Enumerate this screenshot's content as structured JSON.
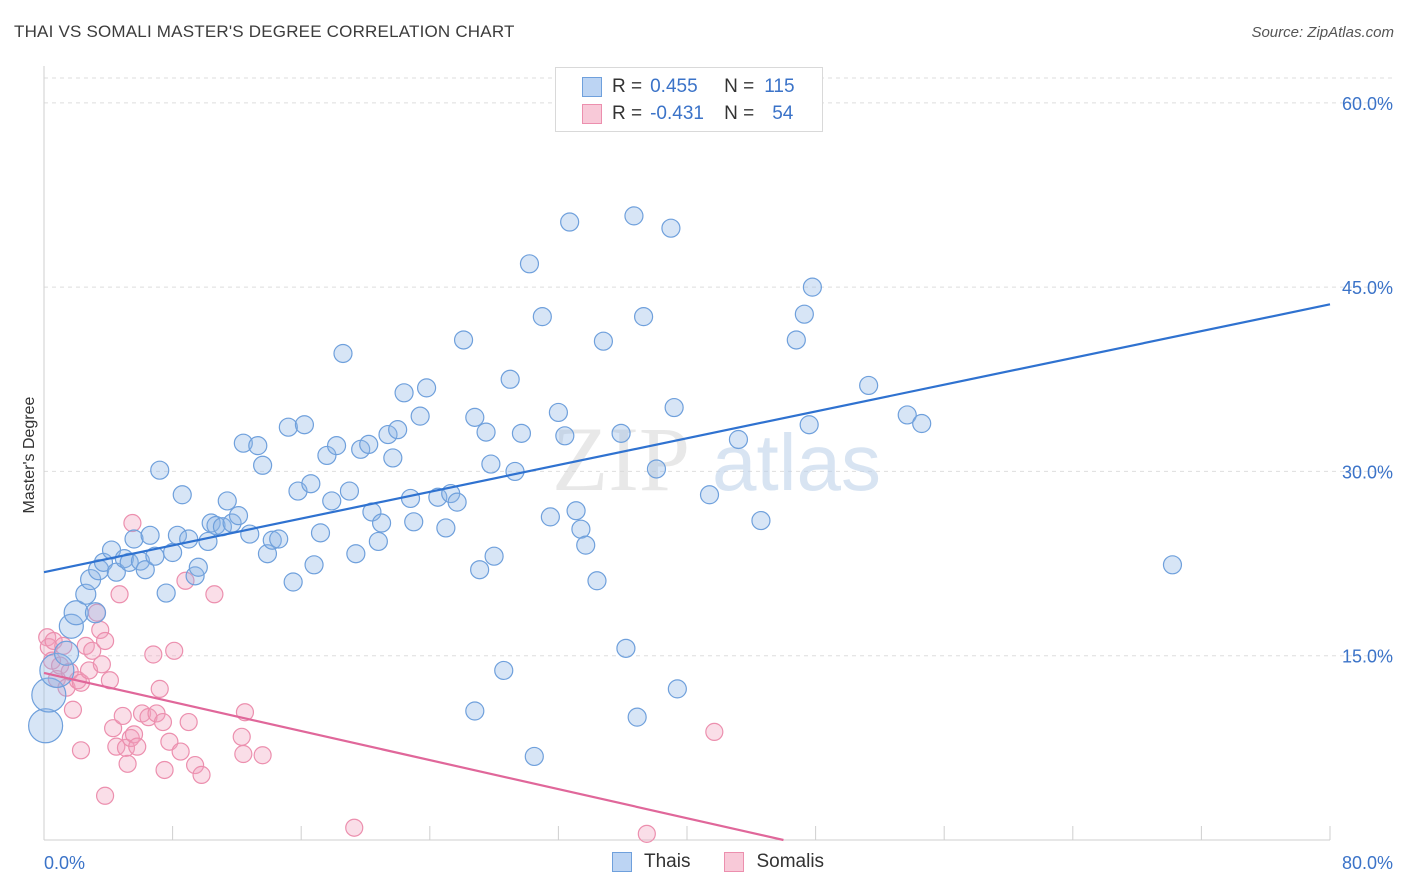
{
  "title": "THAI VS SOMALI MASTER'S DEGREE CORRELATION CHART",
  "source": "Source: ZipAtlas.com",
  "legend": {
    "rows": [
      {
        "r_label": "R =",
        "r_value": "0.455",
        "n_label": "N =",
        "n_value": "115",
        "color": "#6fa0dc"
      },
      {
        "r_label": "R =",
        "r_value": "-0.431",
        "n_label": "N =",
        "n_value": "54",
        "color": "#ec8fae"
      }
    ]
  },
  "bottom_legend": {
    "thais": "Thais",
    "somalis": "Somalis"
  },
  "watermark": {
    "zip": "ZIP",
    "atlas": "atlas"
  },
  "chart_data": {
    "type": "scatter",
    "title": "THAI VS SOMALI MASTER'S DEGREE CORRELATION CHART",
    "xlabel": "",
    "ylabel": "Master's Degree",
    "xlim": [
      0,
      80
    ],
    "ylim": [
      0,
      63
    ],
    "x_tick_labels": [
      "0.0%",
      "80.0%"
    ],
    "y_ticks": [
      15,
      30,
      45,
      60
    ],
    "y_tick_labels": [
      "15.0%",
      "30.0%",
      "45.0%",
      "60.0%"
    ],
    "grid": "horizontal dashed",
    "legend_placement": "top-center",
    "colors": {
      "thais": "#6fa0dc",
      "somalis": "#ec8fae",
      "thais_line": "#2f72d0",
      "somalis_line": "#e0679a"
    },
    "series": [
      {
        "name": "Thais",
        "trend": [
          [
            0,
            21.8
          ],
          [
            80,
            43.6
          ]
        ],
        "points": [
          [
            0.1,
            9.3
          ],
          [
            0.3,
            11.8
          ],
          [
            0.8,
            13.8
          ],
          [
            1.4,
            15.2
          ],
          [
            1.7,
            17.4
          ],
          [
            2.0,
            18.5
          ],
          [
            2.6,
            20.0
          ],
          [
            2.9,
            21.2
          ],
          [
            3.2,
            18.5
          ],
          [
            3.4,
            22.0
          ],
          [
            3.7,
            22.6
          ],
          [
            4.2,
            23.6
          ],
          [
            4.5,
            21.8
          ],
          [
            5.0,
            22.9
          ],
          [
            5.3,
            22.6
          ],
          [
            5.6,
            24.5
          ],
          [
            6.0,
            22.7
          ],
          [
            6.3,
            22.0
          ],
          [
            6.6,
            24.8
          ],
          [
            6.9,
            23.1
          ],
          [
            7.2,
            30.1
          ],
          [
            7.6,
            20.1
          ],
          [
            8.0,
            23.4
          ],
          [
            8.3,
            24.8
          ],
          [
            8.6,
            28.1
          ],
          [
            9.0,
            24.5
          ],
          [
            9.4,
            21.5
          ],
          [
            9.6,
            22.2
          ],
          [
            10.2,
            24.3
          ],
          [
            10.4,
            25.8
          ],
          [
            10.7,
            25.6
          ],
          [
            11.1,
            25.5
          ],
          [
            11.4,
            27.6
          ],
          [
            11.7,
            25.8
          ],
          [
            12.1,
            26.4
          ],
          [
            12.4,
            32.3
          ],
          [
            12.8,
            24.9
          ],
          [
            13.3,
            32.1
          ],
          [
            13.6,
            30.5
          ],
          [
            13.9,
            23.3
          ],
          [
            14.2,
            24.4
          ],
          [
            14.6,
            24.5
          ],
          [
            15.2,
            33.6
          ],
          [
            15.5,
            21.0
          ],
          [
            15.8,
            28.4
          ],
          [
            16.2,
            33.8
          ],
          [
            16.6,
            29.0
          ],
          [
            16.8,
            22.4
          ],
          [
            17.2,
            25.0
          ],
          [
            17.6,
            31.3
          ],
          [
            17.9,
            27.6
          ],
          [
            18.2,
            32.1
          ],
          [
            18.6,
            39.6
          ],
          [
            19.0,
            28.4
          ],
          [
            19.4,
            23.3
          ],
          [
            19.7,
            31.8
          ],
          [
            20.2,
            32.2
          ],
          [
            20.4,
            26.7
          ],
          [
            20.8,
            24.3
          ],
          [
            21.0,
            25.8
          ],
          [
            21.4,
            33.0
          ],
          [
            21.7,
            31.1
          ],
          [
            22.0,
            33.4
          ],
          [
            22.4,
            36.4
          ],
          [
            22.8,
            27.8
          ],
          [
            23.0,
            25.9
          ],
          [
            23.4,
            34.5
          ],
          [
            23.8,
            36.8
          ],
          [
            24.5,
            27.9
          ],
          [
            25.0,
            25.4
          ],
          [
            25.3,
            28.2
          ],
          [
            25.7,
            27.5
          ],
          [
            26.1,
            40.7
          ],
          [
            26.8,
            34.4
          ],
          [
            27.1,
            22.0
          ],
          [
            27.5,
            33.2
          ],
          [
            27.8,
            30.6
          ],
          [
            28.0,
            23.1
          ],
          [
            28.6,
            13.8
          ],
          [
            29.0,
            37.5
          ],
          [
            29.3,
            30.0
          ],
          [
            29.7,
            33.1
          ],
          [
            30.2,
            46.9
          ],
          [
            30.5,
            6.8
          ],
          [
            31.0,
            42.6
          ],
          [
            31.5,
            26.3
          ],
          [
            32.0,
            34.8
          ],
          [
            32.4,
            32.9
          ],
          [
            32.7,
            50.3
          ],
          [
            33.1,
            26.8
          ],
          [
            33.4,
            25.3
          ],
          [
            33.7,
            24.0
          ],
          [
            34.4,
            21.1
          ],
          [
            34.8,
            40.6
          ],
          [
            35.9,
            33.1
          ],
          [
            36.2,
            15.6
          ],
          [
            36.7,
            50.8
          ],
          [
            36.9,
            10.0
          ],
          [
            37.3,
            42.6
          ],
          [
            38.1,
            30.2
          ],
          [
            39.0,
            49.8
          ],
          [
            39.2,
            35.2
          ],
          [
            39.4,
            12.3
          ],
          [
            41.4,
            28.1
          ],
          [
            43.2,
            32.6
          ],
          [
            44.6,
            26.0
          ],
          [
            46.8,
            40.7
          ],
          [
            47.3,
            42.8
          ],
          [
            47.6,
            33.8
          ],
          [
            47.8,
            45.0
          ],
          [
            51.3,
            37.0
          ],
          [
            53.7,
            34.6
          ],
          [
            54.6,
            33.9
          ],
          [
            70.2,
            22.4
          ],
          [
            26.8,
            10.5
          ]
        ],
        "sizes_note": "larger bubbles near origin"
      },
      {
        "name": "Somalis",
        "trend": [
          [
            0,
            13.6
          ],
          [
            46,
            0
          ]
        ],
        "points": [
          [
            0.2,
            16.5
          ],
          [
            0.3,
            15.7
          ],
          [
            0.5,
            14.6
          ],
          [
            0.6,
            16.2
          ],
          [
            0.8,
            13.1
          ],
          [
            1.0,
            14.2
          ],
          [
            1.2,
            15.8
          ],
          [
            1.4,
            12.4
          ],
          [
            1.6,
            13.7
          ],
          [
            1.8,
            10.6
          ],
          [
            2.1,
            13.0
          ],
          [
            2.3,
            12.8
          ],
          [
            2.6,
            15.8
          ],
          [
            2.8,
            13.8
          ],
          [
            3.0,
            15.4
          ],
          [
            3.3,
            18.5
          ],
          [
            3.5,
            17.1
          ],
          [
            3.6,
            14.3
          ],
          [
            3.8,
            16.2
          ],
          [
            4.1,
            13.0
          ],
          [
            4.3,
            9.1
          ],
          [
            4.5,
            7.6
          ],
          [
            4.7,
            20.0
          ],
          [
            4.9,
            10.1
          ],
          [
            5.1,
            7.5
          ],
          [
            5.2,
            6.2
          ],
          [
            5.4,
            8.3
          ],
          [
            5.6,
            8.6
          ],
          [
            5.8,
            7.6
          ],
          [
            6.1,
            10.3
          ],
          [
            6.5,
            10.0
          ],
          [
            6.8,
            15.1
          ],
          [
            7.0,
            10.3
          ],
          [
            7.2,
            12.3
          ],
          [
            7.4,
            9.6
          ],
          [
            7.5,
            5.7
          ],
          [
            7.8,
            8.0
          ],
          [
            8.1,
            15.4
          ],
          [
            8.5,
            7.2
          ],
          [
            8.8,
            21.1
          ],
          [
            9.0,
            9.6
          ],
          [
            9.4,
            6.1
          ],
          [
            9.8,
            5.3
          ],
          [
            10.6,
            20.0
          ],
          [
            12.3,
            8.4
          ],
          [
            12.4,
            7.0
          ],
          [
            12.5,
            10.4
          ],
          [
            13.6,
            6.9
          ],
          [
            19.3,
            1.0
          ],
          [
            37.5,
            0.5
          ],
          [
            41.7,
            8.8
          ],
          [
            3.8,
            3.6
          ],
          [
            2.3,
            7.3
          ],
          [
            5.5,
            25.8
          ]
        ]
      }
    ]
  }
}
